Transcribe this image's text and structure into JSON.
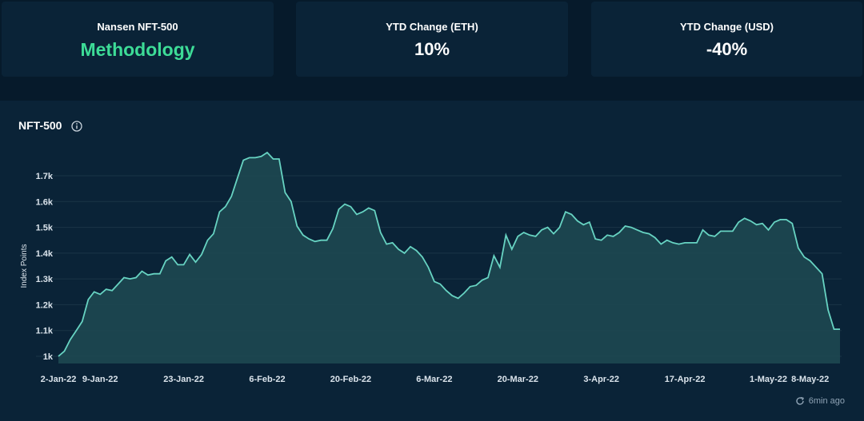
{
  "cards": [
    {
      "label": "Nansen NFT-500",
      "value": "Methodology"
    },
    {
      "label": "YTD Change (ETH)",
      "value": "10%"
    },
    {
      "label": "YTD Change (USD)",
      "value": "-40%"
    }
  ],
  "chart_title": "NFT-500",
  "refresh_text": "6min ago",
  "colors": {
    "line": "#67d3c2",
    "fill": "#1e4a52",
    "accent": "#3ddc97",
    "grid": "#1a3447"
  },
  "chart_data": {
    "type": "area",
    "title": "NFT-500",
    "xlabel": "",
    "ylabel": "Index Points",
    "ylim": [
      950,
      1800
    ],
    "grid": true,
    "y_ticks": [
      1000,
      1100,
      1200,
      1300,
      1400,
      1500,
      1600,
      1700
    ],
    "y_tick_labels": [
      "1k",
      "1.1k",
      "1.2k",
      "1.3k",
      "1.4k",
      "1.5k",
      "1.6k",
      "1.7k"
    ],
    "x_tick_labels": [
      {
        "day": 0,
        "label": "2-Jan-22"
      },
      {
        "day": 7,
        "label": "9-Jan-22"
      },
      {
        "day": 21,
        "label": "23-Jan-22"
      },
      {
        "day": 35,
        "label": "6-Feb-22"
      },
      {
        "day": 49,
        "label": "20-Feb-22"
      },
      {
        "day": 63,
        "label": "6-Mar-22"
      },
      {
        "day": 77,
        "label": "20-Mar-22"
      },
      {
        "day": 91,
        "label": "3-Apr-22"
      },
      {
        "day": 105,
        "label": "17-Apr-22"
      },
      {
        "day": 119,
        "label": "1-May-22"
      },
      {
        "day": 126,
        "label": "8-May-22"
      }
    ],
    "series": [
      {
        "values": [
          1000,
          1020,
          1065,
          1100,
          1135,
          1220,
          1250,
          1240,
          1260,
          1255,
          1280,
          1305,
          1300,
          1305,
          1330,
          1315,
          1320,
          1320,
          1370,
          1385,
          1355,
          1355,
          1395,
          1365,
          1395,
          1450,
          1475,
          1560,
          1580,
          1620,
          1690,
          1760,
          1770,
          1770,
          1775,
          1790,
          1765,
          1765,
          1635,
          1600,
          1505,
          1470,
          1455,
          1445,
          1450,
          1450,
          1495,
          1570,
          1590,
          1580,
          1550,
          1560,
          1575,
          1565,
          1480,
          1435,
          1440,
          1415,
          1400,
          1425,
          1410,
          1385,
          1345,
          1290,
          1280,
          1255,
          1235,
          1225,
          1245,
          1270,
          1275,
          1295,
          1305,
          1390,
          1345,
          1470,
          1415,
          1465,
          1480,
          1470,
          1465,
          1490,
          1500,
          1475,
          1500,
          1560,
          1550,
          1525,
          1510,
          1520,
          1455,
          1450,
          1470,
          1465,
          1480,
          1505,
          1500,
          1490,
          1480,
          1475,
          1460,
          1435,
          1450,
          1440,
          1435,
          1440,
          1440,
          1440,
          1490,
          1470,
          1465,
          1485,
          1485,
          1485,
          1520,
          1535,
          1525,
          1510,
          1515,
          1490,
          1520,
          1530,
          1530,
          1515,
          1420,
          1385,
          1370,
          1345,
          1320,
          1180,
          1105,
          1105
        ]
      }
    ]
  }
}
